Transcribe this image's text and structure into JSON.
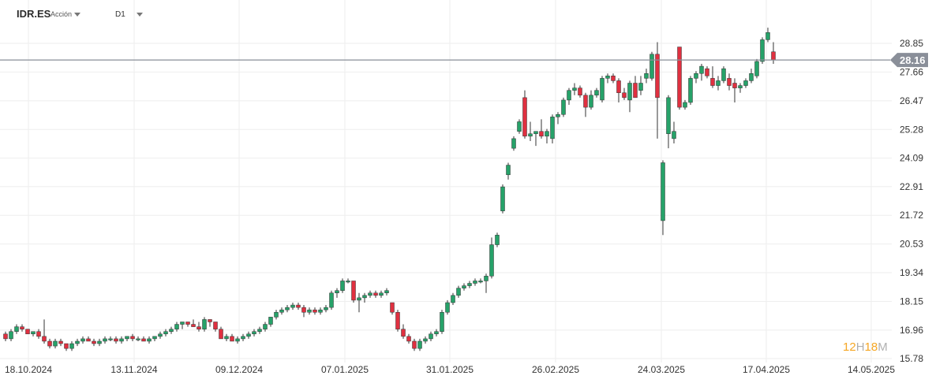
{
  "header": {
    "symbol": "IDR.ES",
    "instrument_type": "Acción",
    "timeframe": "D1"
  },
  "branding": {
    "p1": "12",
    "p2": "H",
    "p3": "18",
    "p4": "M"
  },
  "colors": {
    "up": "#26a269",
    "down": "#e03040",
    "price_line": "#8a8f99",
    "grid": "#eeeeee",
    "price_label_bg": "#8a8f99"
  },
  "chart_data": {
    "type": "candlestick",
    "title": "",
    "y_ticks": [
      "28.85",
      "27.66",
      "26.47",
      "25.28",
      "24.09",
      "22.91",
      "21.72",
      "20.53",
      "19.34",
      "18.15",
      "16.96",
      "15.78"
    ],
    "y_range": [
      15.78,
      28.85
    ],
    "x_ticks": [
      "18.10.2024",
      "13.11.2024",
      "09.12.2024",
      "07.01.2025",
      "31.01.2025",
      "26.02.2025",
      "24.03.2025",
      "17.04.2025",
      "14.05.2025"
    ],
    "current_price": "28.16",
    "grid": true,
    "candles": [
      [
        16.8,
        16.9,
        16.5,
        16.6
      ],
      [
        16.6,
        17.0,
        16.5,
        16.9
      ],
      [
        16.9,
        17.2,
        16.8,
        17.1
      ],
      [
        17.1,
        17.2,
        16.9,
        17.0
      ],
      [
        17.0,
        17.0,
        16.8,
        16.8
      ],
      [
        16.8,
        16.9,
        16.7,
        16.9
      ],
      [
        16.9,
        17.0,
        16.6,
        16.7
      ],
      [
        16.7,
        17.4,
        16.4,
        16.5
      ],
      [
        16.5,
        16.6,
        16.2,
        16.3
      ],
      [
        16.3,
        16.6,
        16.2,
        16.5
      ],
      [
        16.5,
        16.6,
        16.3,
        16.4
      ],
      [
        16.4,
        16.4,
        16.1,
        16.2
      ],
      [
        16.2,
        16.5,
        16.1,
        16.4
      ],
      [
        16.4,
        16.6,
        16.3,
        16.5
      ],
      [
        16.5,
        16.7,
        16.4,
        16.6
      ],
      [
        16.6,
        16.7,
        16.5,
        16.5
      ],
      [
        16.5,
        16.6,
        16.3,
        16.4
      ],
      [
        16.4,
        16.6,
        16.3,
        16.5
      ],
      [
        16.5,
        16.7,
        16.4,
        16.6
      ],
      [
        16.6,
        16.7,
        16.5,
        16.6
      ],
      [
        16.6,
        16.7,
        16.4,
        16.5
      ],
      [
        16.5,
        16.7,
        16.4,
        16.6
      ],
      [
        16.6,
        16.7,
        16.5,
        16.7
      ],
      [
        16.7,
        16.8,
        16.5,
        16.6
      ],
      [
        16.6,
        16.7,
        16.5,
        16.6
      ],
      [
        16.6,
        16.7,
        16.5,
        16.5
      ],
      [
        16.5,
        16.7,
        16.4,
        16.6
      ],
      [
        16.6,
        16.7,
        16.5,
        16.7
      ],
      [
        16.7,
        16.9,
        16.6,
        16.8
      ],
      [
        16.8,
        17.0,
        16.7,
        16.9
      ],
      [
        16.9,
        17.1,
        16.8,
        17.0
      ],
      [
        17.0,
        17.3,
        16.9,
        17.2
      ],
      [
        17.2,
        17.3,
        17.0,
        17.3
      ],
      [
        17.3,
        17.3,
        17.1,
        17.2
      ],
      [
        17.2,
        17.4,
        17.1,
        17.1
      ],
      [
        17.1,
        17.3,
        16.9,
        17.0
      ],
      [
        17.0,
        17.5,
        16.9,
        17.4
      ],
      [
        17.4,
        17.4,
        17.1,
        17.3
      ],
      [
        17.3,
        17.3,
        16.9,
        17.0
      ],
      [
        17.0,
        17.1,
        16.6,
        16.6
      ],
      [
        16.6,
        16.8,
        16.5,
        16.7
      ],
      [
        16.7,
        16.8,
        16.5,
        16.5
      ],
      [
        16.5,
        16.7,
        16.4,
        16.6
      ],
      [
        16.6,
        16.8,
        16.5,
        16.7
      ],
      [
        16.7,
        16.9,
        16.6,
        16.8
      ],
      [
        16.8,
        17.0,
        16.7,
        16.9
      ],
      [
        16.9,
        17.1,
        16.8,
        17.0
      ],
      [
        17.0,
        17.3,
        16.9,
        17.2
      ],
      [
        17.2,
        17.5,
        17.1,
        17.5
      ],
      [
        17.5,
        17.8,
        17.4,
        17.7
      ],
      [
        17.7,
        17.9,
        17.6,
        17.8
      ],
      [
        17.8,
        18.0,
        17.7,
        17.9
      ],
      [
        17.9,
        18.1,
        17.8,
        18.0
      ],
      [
        18.0,
        18.1,
        17.8,
        17.9
      ],
      [
        17.9,
        18.0,
        17.5,
        17.7
      ],
      [
        17.7,
        17.9,
        17.6,
        17.8
      ],
      [
        17.8,
        17.9,
        17.6,
        17.7
      ],
      [
        17.7,
        17.9,
        17.6,
        17.8
      ],
      [
        17.8,
        18.0,
        17.7,
        17.9
      ],
      [
        17.9,
        18.6,
        17.8,
        18.5
      ],
      [
        18.5,
        18.7,
        18.3,
        18.6
      ],
      [
        18.6,
        19.1,
        18.5,
        19.0
      ],
      [
        19.0,
        19.1,
        18.9,
        19.0
      ],
      [
        19.0,
        19.0,
        18.1,
        18.2
      ],
      [
        18.2,
        18.5,
        17.7,
        18.3
      ],
      [
        18.3,
        18.5,
        18.1,
        18.4
      ],
      [
        18.4,
        18.6,
        18.3,
        18.5
      ],
      [
        18.5,
        18.6,
        18.3,
        18.4
      ],
      [
        18.4,
        18.6,
        18.3,
        18.5
      ],
      [
        18.5,
        18.7,
        18.4,
        18.6
      ],
      [
        18.1,
        18.1,
        17.6,
        17.7
      ],
      [
        17.7,
        17.8,
        16.9,
        17.0
      ],
      [
        17.0,
        17.2,
        16.6,
        16.7
      ],
      [
        16.7,
        16.8,
        16.4,
        16.5
      ],
      [
        16.5,
        16.6,
        16.1,
        16.2
      ],
      [
        16.2,
        16.6,
        16.1,
        16.5
      ],
      [
        16.5,
        16.7,
        16.4,
        16.6
      ],
      [
        16.6,
        16.9,
        16.5,
        16.8
      ],
      [
        16.8,
        17.0,
        16.7,
        16.9
      ],
      [
        16.9,
        17.8,
        16.8,
        17.7
      ],
      [
        17.7,
        18.2,
        17.6,
        18.1
      ],
      [
        18.1,
        18.5,
        18.0,
        18.4
      ],
      [
        18.4,
        18.8,
        18.3,
        18.7
      ],
      [
        18.7,
        18.9,
        18.6,
        18.8
      ],
      [
        18.8,
        19.0,
        18.7,
        18.9
      ],
      [
        18.9,
        19.1,
        18.8,
        19.0
      ],
      [
        19.0,
        19.1,
        18.9,
        19.0
      ],
      [
        19.0,
        19.3,
        18.5,
        19.2
      ],
      [
        19.2,
        20.8,
        19.1,
        20.5
      ],
      [
        20.5,
        21.0,
        20.4,
        20.9
      ],
      [
        21.9,
        23.0,
        21.8,
        22.9
      ],
      [
        23.4,
        23.9,
        23.2,
        23.8
      ],
      [
        24.5,
        25.0,
        24.4,
        24.9
      ],
      [
        25.2,
        25.7,
        25.1,
        25.6
      ],
      [
        26.6,
        26.9,
        24.9,
        25.0
      ],
      [
        25.0,
        25.6,
        24.8,
        25.1
      ],
      [
        25.1,
        25.2,
        24.6,
        25.2
      ],
      [
        25.2,
        25.7,
        24.9,
        25.0
      ],
      [
        25.0,
        25.3,
        24.7,
        25.2
      ],
      [
        24.9,
        25.9,
        24.7,
        25.8
      ],
      [
        25.8,
        26.0,
        25.5,
        25.9
      ],
      [
        25.9,
        26.6,
        25.8,
        26.5
      ],
      [
        26.5,
        27.0,
        26.3,
        26.9
      ],
      [
        26.9,
        27.2,
        26.7,
        27.0
      ],
      [
        27.0,
        27.1,
        26.6,
        26.7
      ],
      [
        26.7,
        26.8,
        25.8,
        26.2
      ],
      [
        26.2,
        26.9,
        26.1,
        26.7
      ],
      [
        26.7,
        27.0,
        26.6,
        26.9
      ],
      [
        26.5,
        27.5,
        26.4,
        27.4
      ],
      [
        27.4,
        27.6,
        27.2,
        27.5
      ],
      [
        27.5,
        27.6,
        27.2,
        27.3
      ],
      [
        27.3,
        27.4,
        26.4,
        26.8
      ],
      [
        26.8,
        27.0,
        26.5,
        26.6
      ],
      [
        26.5,
        27.3,
        26.0,
        27.2
      ],
      [
        27.2,
        27.5,
        26.6,
        26.6
      ],
      [
        26.9,
        27.5,
        26.7,
        27.2
      ],
      [
        27.4,
        27.8,
        27.2,
        27.6
      ],
      [
        27.4,
        28.5,
        27.3,
        28.4
      ],
      [
        28.4,
        28.9,
        24.9,
        26.6
      ],
      [
        21.5,
        24.0,
        20.9,
        23.9
      ],
      [
        25.1,
        26.7,
        24.5,
        26.6
      ],
      [
        24.9,
        25.6,
        24.7,
        25.2
      ],
      [
        28.7,
        28.7,
        26.1,
        26.2
      ],
      [
        26.2,
        26.5,
        26.1,
        26.4
      ],
      [
        26.4,
        27.5,
        26.3,
        27.4
      ],
      [
        27.4,
        27.7,
        27.2,
        27.6
      ],
      [
        27.6,
        28.0,
        27.3,
        27.9
      ],
      [
        27.8,
        27.9,
        27.4,
        27.5
      ],
      [
        27.4,
        27.9,
        27.0,
        27.1
      ],
      [
        27.1,
        27.5,
        26.9,
        27.3
      ],
      [
        27.3,
        27.9,
        27.2,
        27.8
      ],
      [
        27.4,
        27.6,
        26.9,
        27.1
      ],
      [
        27.2,
        27.4,
        26.4,
        27.0
      ],
      [
        27.0,
        27.2,
        26.8,
        27.1
      ],
      [
        27.1,
        27.4,
        27.0,
        27.3
      ],
      [
        27.3,
        27.8,
        27.2,
        27.6
      ],
      [
        27.5,
        28.2,
        27.4,
        28.1
      ],
      [
        28.1,
        29.1,
        28.0,
        29.0
      ],
      [
        29.0,
        29.5,
        28.9,
        29.3
      ],
      [
        28.5,
        28.9,
        28.0,
        28.16
      ]
    ]
  }
}
